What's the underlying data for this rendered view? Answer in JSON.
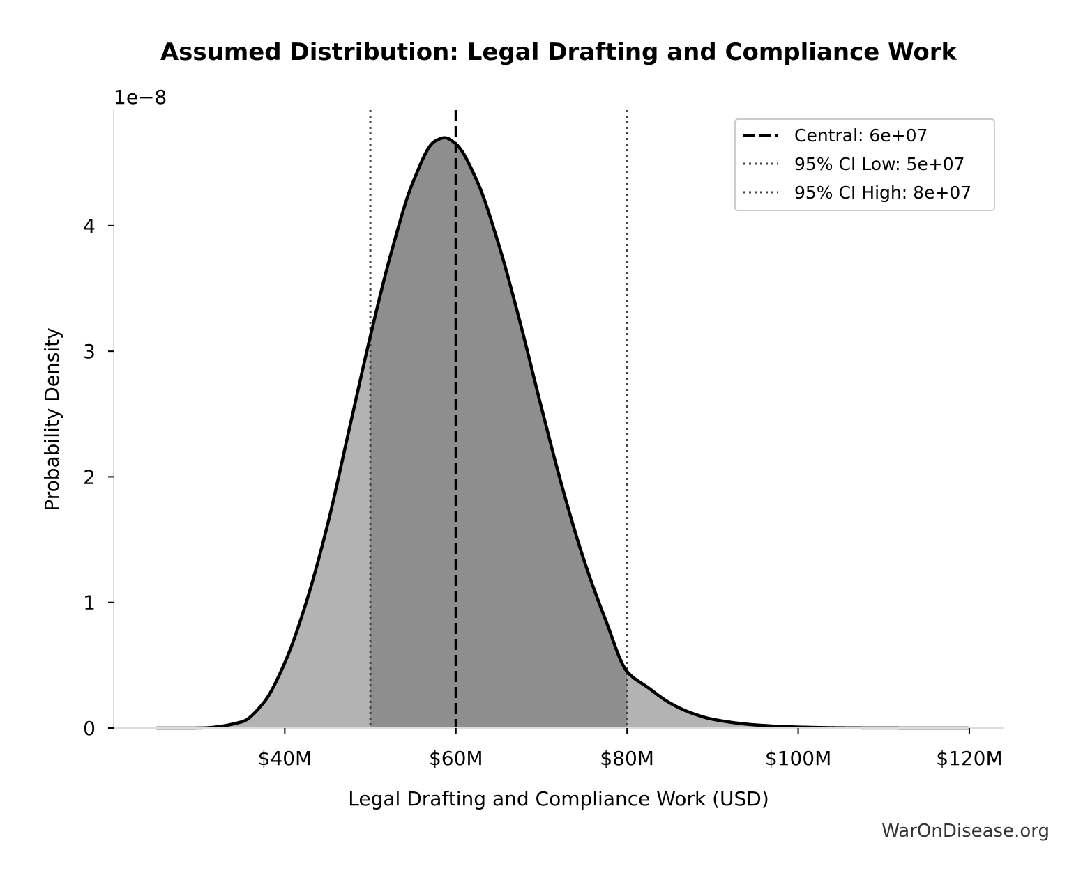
{
  "chart_data": {
    "type": "area",
    "title": "Assumed Distribution: Legal Drafting and Compliance Work",
    "xlabel": "Legal Drafting and Compliance Work (USD)",
    "ylabel": "Probability Density",
    "y_offset_text": "1e−8",
    "xlim": [
      20000000,
      124000000
    ],
    "ylim": [
      0,
      4.92e-08
    ],
    "x_ticks": [
      {
        "value": 40000000,
        "label": "$40M"
      },
      {
        "value": 60000000,
        "label": "$60M"
      },
      {
        "value": 80000000,
        "label": "$80M"
      },
      {
        "value": 100000000,
        "label": "$100M"
      },
      {
        "value": 120000000,
        "label": "$120M"
      }
    ],
    "y_ticks": [
      {
        "value": 0,
        "label": "0"
      },
      {
        "value": 1e-08,
        "label": "1"
      },
      {
        "value": 2e-08,
        "label": "2"
      },
      {
        "value": 3e-08,
        "label": "3"
      },
      {
        "value": 4e-08,
        "label": "4"
      }
    ],
    "distribution": {
      "x_min": 25000000,
      "x_max": 120000000,
      "mode": 58700000,
      "peak_density": 4.7e-08,
      "x": [
        25000000,
        30000000,
        35000000,
        37500000,
        40000000,
        42500000,
        45000000,
        47500000,
        50000000,
        52500000,
        55000000,
        57500000,
        58700000,
        60000000,
        62500000,
        65000000,
        67500000,
        70000000,
        72500000,
        75000000,
        77500000,
        80000000,
        82500000,
        85000000,
        87500000,
        90000000,
        95000000,
        100000000,
        105000000,
        110000000,
        120000000
      ],
      "density": [
        0,
        4e-12,
        5e-10,
        2e-09,
        5.2e-09,
        1e-08,
        1.62e-08,
        2.37e-08,
        3.12e-08,
        3.8e-08,
        4.35e-08,
        4.67e-08,
        4.7e-08,
        4.65e-08,
        4.35e-08,
        3.85e-08,
        3.23e-08,
        2.55e-08,
        1.9e-08,
        1.33e-08,
        8.6e-09,
        4.5e-09,
        3.2e-09,
        2e-09,
        1.2e-09,
        7e-10,
        2.5e-10,
        8e-11,
        2e-11,
        5e-12,
        0
      ]
    },
    "ci_shading": {
      "low": 50000000,
      "high": 80000000
    },
    "reference_lines": [
      {
        "name": "Central: 6e+07",
        "x": 60000000,
        "style": "dashed",
        "color": "#000000"
      },
      {
        "name": "95% CI Low: 5e+07",
        "x": 50000000,
        "style": "dotted",
        "color": "#444444"
      },
      {
        "name": "95% CI High: 8e+07",
        "x": 80000000,
        "style": "dotted",
        "color": "#444444"
      }
    ],
    "legend_position": "top-right",
    "colors": {
      "outer_fill": "#b3b3b3",
      "ci_fill": "#8e8e8e",
      "curve": "#000000"
    }
  },
  "credit": "WarOnDisease.org"
}
